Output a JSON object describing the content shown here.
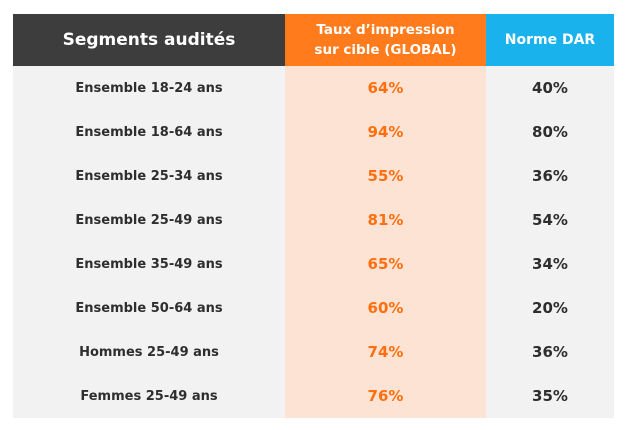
{
  "headers": {
    "segment": "Segments audités",
    "taux_line1": "Taux d’impression",
    "taux_line2": "sur cible (GLOBAL)",
    "norme": "Norme DAR"
  },
  "rows": [
    {
      "segment": "Ensemble 18-24 ans",
      "taux": "64%",
      "norme": "40%"
    },
    {
      "segment": "Ensemble 18-64 ans",
      "taux": "94%",
      "norme": "80%"
    },
    {
      "segment": "Ensemble 25-34 ans",
      "taux": "55%",
      "norme": "36%"
    },
    {
      "segment": "Ensemble 25-49 ans",
      "taux": "81%",
      "norme": "54%"
    },
    {
      "segment": "Ensemble 35-49 ans",
      "taux": "65%",
      "norme": "34%"
    },
    {
      "segment": "Ensemble 50-64 ans",
      "taux": "60%",
      "norme": "20%"
    },
    {
      "segment": "Hommes 25-49 ans",
      "taux": "74%",
      "norme": "36%"
    },
    {
      "segment": "Femmes 25-49 ans",
      "taux": "76%",
      "norme": "35%"
    }
  ],
  "colors": {
    "header_dark": "#3d3d3d",
    "header_orange": "#ff7b1c",
    "header_blue": "#1ab2ec",
    "taux_column_bg": "#fde3d3",
    "taux_text": "#ff6f10",
    "row_bg": "#f2f2f2"
  }
}
